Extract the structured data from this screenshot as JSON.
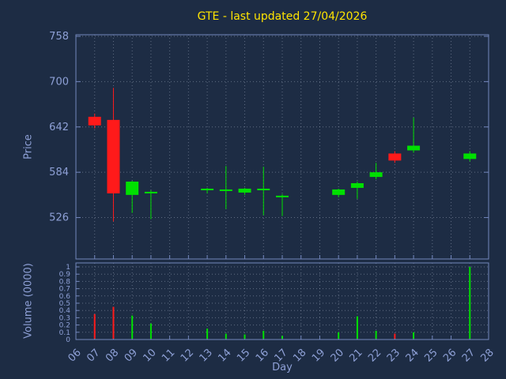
{
  "chart_data": {
    "type": "candlestick",
    "title": "GTE - last updated 27/04/2026",
    "xlabel": "Day",
    "legend": "none",
    "grid": "dotted",
    "price_axis": {
      "label": "Price",
      "ticks": [
        758,
        700,
        642,
        584,
        526
      ],
      "max": 760,
      "min": 473
    },
    "volume_axis": {
      "label": "Volume (0000)",
      "ticks": [
        0,
        0.1,
        0.2,
        0.3,
        0.4,
        0.5,
        0.6,
        0.7,
        0.8,
        0.9,
        1
      ],
      "tick_labels": [
        "0",
        "0.1",
        "0.2",
        "0.3",
        "0.4",
        "0.5",
        "0.6",
        "0.7",
        "0.8",
        "0.9",
        "1"
      ],
      "max": 1,
      "min": 0
    },
    "x_ticks": [
      "06",
      "07",
      "08",
      "09",
      "10",
      "11",
      "12",
      "13",
      "14",
      "15",
      "16",
      "17",
      "18",
      "19",
      "20",
      "21",
      "22",
      "23",
      "24",
      "25",
      "26",
      "27",
      "28"
    ],
    "x_min": 6,
    "x_max": 28,
    "colors": {
      "up": "#00e000",
      "down": "#ff1a1a",
      "background": "#1d2c44",
      "text": "#8ea0d6",
      "title": "#ffe400"
    },
    "candles": [
      {
        "day": 7,
        "open": 655,
        "high": 659,
        "low": 640,
        "close": 644,
        "volume": 0.35
      },
      {
        "day": 8,
        "open": 651,
        "high": 692,
        "low": 521,
        "close": 557,
        "volume": 0.45
      },
      {
        "day": 9,
        "open": 555,
        "high": 573,
        "low": 532,
        "close": 572,
        "volume": 0.33
      },
      {
        "day": 10,
        "open": 557,
        "high": 561,
        "low": 524,
        "close": 559,
        "volume": 0.22
      },
      {
        "day": 13,
        "open": 561,
        "high": 564,
        "low": 557,
        "close": 563,
        "volume": 0.15
      },
      {
        "day": 14,
        "open": 560,
        "high": 592,
        "low": 537,
        "close": 562,
        "volume": 0.08
      },
      {
        "day": 15,
        "open": 558,
        "high": 564,
        "low": 555,
        "close": 563,
        "volume": 0.07
      },
      {
        "day": 16,
        "open": 561,
        "high": 591,
        "low": 529,
        "close": 563,
        "volume": 0.12
      },
      {
        "day": 17,
        "open": 552,
        "high": 556,
        "low": 528,
        "close": 554,
        "volume": 0.05
      },
      {
        "day": 20,
        "open": 555,
        "high": 563,
        "low": 552,
        "close": 562,
        "volume": 0.1
      },
      {
        "day": 21,
        "open": 564,
        "high": 572,
        "low": 550,
        "close": 570,
        "volume": 0.32
      },
      {
        "day": 22,
        "open": 578,
        "high": 596,
        "low": 575,
        "close": 584,
        "volume": 0.12
      },
      {
        "day": 23,
        "open": 608,
        "high": 611,
        "low": 596,
        "close": 599,
        "volume": 0.08
      },
      {
        "day": 24,
        "open": 612,
        "high": 654,
        "low": 609,
        "close": 618,
        "volume": 0.1
      },
      {
        "day": 27,
        "open": 601,
        "high": 611,
        "low": 598,
        "close": 608,
        "volume": 1.0
      }
    ]
  }
}
